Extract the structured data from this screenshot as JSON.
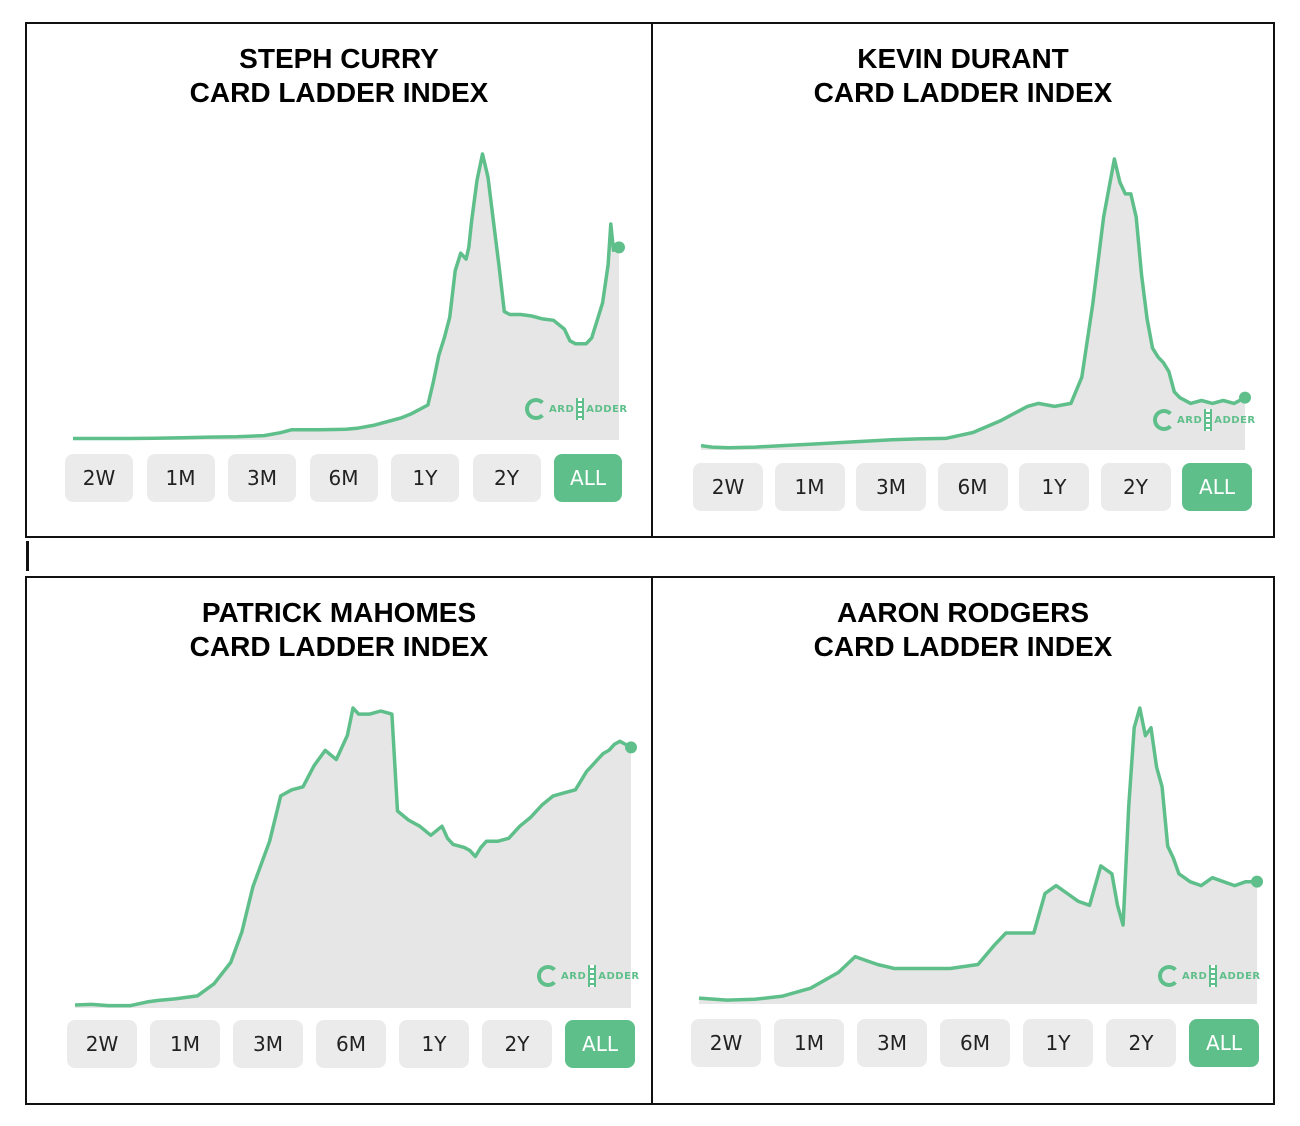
{
  "chart_data": [
    {
      "type": "area",
      "title": [
        "STEPH CURRY",
        "CARD LADDER INDEX"
      ],
      "ranges": [
        "2W",
        "1M",
        "3M",
        "6M",
        "1Y",
        "2Y",
        "ALL"
      ],
      "active_range": "ALL",
      "logo": [
        "ARD",
        "ADDER"
      ],
      "x": [
        0,
        5,
        10,
        15,
        20,
        25,
        30,
        35,
        38,
        40,
        42,
        45,
        48,
        50,
        52,
        55,
        58,
        60,
        62,
        65,
        66,
        67,
        68,
        69,
        70,
        71,
        72,
        72.5,
        73,
        74,
        75,
        76,
        77,
        78,
        79,
        80,
        82,
        84,
        86,
        88,
        90,
        91,
        92,
        93,
        94,
        95,
        96,
        97,
        98,
        98.5,
        99,
        99.5,
        100
      ],
      "values": [
        0.5,
        0.5,
        0.5,
        0.6,
        0.8,
        1.0,
        1.1,
        1.5,
        2.5,
        3.5,
        3.5,
        3.5,
        3.6,
        3.7,
        4.0,
        5.0,
        6.5,
        7.5,
        9.0,
        12.0,
        20.0,
        29.0,
        35.0,
        42.0,
        58.0,
        64.0,
        62.0,
        66.0,
        75.0,
        89.0,
        98.0,
        90.0,
        75.0,
        60.0,
        44.0,
        43.0,
        43.0,
        42.5,
        41.5,
        41.0,
        38.0,
        34.0,
        33.0,
        33.0,
        33.0,
        35.0,
        41.0,
        47.0,
        60.0,
        74.0,
        65.0,
        67.0,
        66.0
      ],
      "color": "#5fbf8a",
      "fill": "#e6e6e6"
    },
    {
      "type": "area",
      "title": [
        "KEVIN DURANT",
        "CARD LADDER INDEX"
      ],
      "ranges": [
        "2W",
        "1M",
        "3M",
        "6M",
        "1Y",
        "2Y",
        "ALL"
      ],
      "active_range": "ALL",
      "logo": [
        "ARD",
        "ADDER"
      ],
      "x": [
        0,
        2,
        5,
        10,
        15,
        20,
        25,
        30,
        35,
        40,
        45,
        50,
        55,
        60,
        62,
        65,
        68,
        70,
        72,
        74,
        76,
        77,
        78,
        79,
        80,
        81,
        82,
        83,
        84,
        85,
        86,
        87,
        88,
        90,
        92,
        94,
        96,
        98,
        100
      ],
      "values": [
        1.5,
        1.0,
        0.8,
        1.0,
        1.5,
        2.0,
        2.5,
        3.0,
        3.5,
        3.8,
        4.0,
        6.0,
        10.0,
        15.0,
        16.0,
        15.0,
        16.0,
        25.0,
        50.0,
        80.0,
        100.0,
        92.0,
        88.0,
        88.0,
        80.0,
        60.0,
        45.0,
        35.0,
        32.0,
        30.0,
        27.0,
        20.0,
        18.0,
        16.0,
        17.0,
        16.0,
        17.0,
        16.0,
        18.0
      ],
      "color": "#5fbf8a",
      "fill": "#e6e6e6"
    },
    {
      "type": "area",
      "title": [
        "PATRICK MAHOMES",
        "CARD LADDER INDEX"
      ],
      "ranges": [
        "2W",
        "1M",
        "3M",
        "6M",
        "1Y",
        "2Y",
        "ALL"
      ],
      "active_range": "ALL",
      "logo": [
        "ARD",
        "ADDER"
      ],
      "x": [
        0,
        3,
        6,
        10,
        13,
        15,
        18,
        22,
        25,
        28,
        30,
        32,
        35,
        37,
        39,
        41,
        43,
        45,
        47,
        49,
        50,
        51,
        53,
        55,
        57,
        58,
        60,
        62,
        64,
        66,
        67,
        68,
        70,
        71,
        72,
        73,
        74,
        76,
        78,
        80,
        82,
        84,
        86,
        88,
        90,
        91,
        92,
        93,
        94,
        95,
        96,
        97,
        98,
        100
      ],
      "values": [
        1.0,
        1.2,
        0.8,
        0.8,
        2.0,
        2.5,
        3.0,
        4.0,
        8.0,
        15.0,
        25.0,
        40.0,
        55.0,
        70.0,
        72.0,
        73.0,
        80.0,
        85.0,
        82.0,
        90.0,
        99.0,
        97.0,
        97.0,
        98.0,
        97.0,
        65.0,
        62.0,
        60.0,
        57.0,
        60.0,
        56.0,
        54.0,
        53.0,
        52.0,
        50.0,
        53.0,
        55.0,
        55.0,
        56.0,
        60.0,
        63.0,
        67.0,
        70.0,
        71.0,
        72.0,
        75.0,
        78.0,
        80.0,
        82.0,
        84.0,
        85.0,
        87.0,
        88.0,
        86.0
      ],
      "color": "#5fbf8a",
      "fill": "#e6e6e6"
    },
    {
      "type": "area",
      "title": [
        "AARON RODGERS",
        "CARD LADDER INDEX"
      ],
      "ranges": [
        "2W",
        "1M",
        "3M",
        "6M",
        "1Y",
        "2Y",
        "ALL"
      ],
      "active_range": "ALL",
      "logo": [
        "ARD",
        "ADDER"
      ],
      "x": [
        0,
        5,
        10,
        15,
        20,
        25,
        28,
        30,
        32,
        35,
        40,
        45,
        50,
        53,
        55,
        57,
        60,
        62,
        64,
        66,
        68,
        70,
        72,
        74,
        75,
        76,
        77,
        78,
        79,
        80,
        81,
        82,
        83,
        84,
        85,
        86,
        87,
        88,
        90,
        92,
        94,
        96,
        98,
        100
      ],
      "values": [
        1.5,
        1.0,
        1.2,
        2.0,
        4.0,
        8.0,
        12.0,
        11.0,
        10.0,
        9.0,
        9.0,
        9.0,
        10.0,
        15.0,
        18.0,
        18.0,
        18.0,
        28.0,
        30.0,
        28.0,
        26.0,
        25.0,
        35.0,
        33.0,
        25.0,
        20.0,
        50.0,
        70.0,
        75.0,
        68.0,
        70.0,
        60.0,
        55.0,
        40.0,
        37.0,
        33.0,
        32.0,
        31.0,
        30.0,
        32.0,
        31.0,
        30.0,
        31.0,
        31.0
      ],
      "color": "#5fbf8a",
      "fill": "#e6e6e6"
    }
  ]
}
